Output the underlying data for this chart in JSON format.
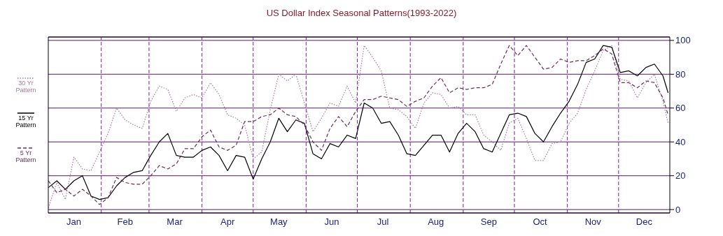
{
  "chart_data": {
    "type": "line",
    "title": "US Dollar Index Seasonal Patterns(1993-2022)",
    "x": [
      "--01-01",
      "--01-06",
      "--01-11",
      "--01-16",
      "--01-21",
      "--01-26",
      "--01-31",
      "--02-05",
      "--02-10",
      "--02-15",
      "--02-20",
      "--02-25",
      "--03-02",
      "--03-07",
      "--03-12",
      "--03-17",
      "--03-22",
      "--03-27",
      "--04-01",
      "--04-06",
      "--04-11",
      "--04-16",
      "--04-21",
      "--04-26",
      "--05-01",
      "--05-06",
      "--05-11",
      "--05-16",
      "--05-21",
      "--05-26",
      "--05-31",
      "--06-05",
      "--06-10",
      "--06-15",
      "--06-20",
      "--06-25",
      "--06-30",
      "--07-05",
      "--07-10",
      "--07-15",
      "--07-20",
      "--07-25",
      "--07-30",
      "--08-04",
      "--08-09",
      "--08-14",
      "--08-19",
      "--08-24",
      "--08-29",
      "--09-03",
      "--09-08",
      "--09-13",
      "--09-18",
      "--09-23",
      "--09-28",
      "--10-03",
      "--10-08",
      "--10-13",
      "--10-18",
      "--10-23",
      "--10-28",
      "--11-02",
      "--11-07",
      "--11-12",
      "--11-17",
      "--11-22",
      "--11-27",
      "--12-02",
      "--12-07",
      "--12-12",
      "--12-17",
      "--12-22",
      "--12-27",
      "--12-30"
    ],
    "xlim": [
      "--01-01",
      "--12-31"
    ],
    "xticks": [
      {
        "value": "--01-16",
        "label": "Jan"
      },
      {
        "value": "--02-15",
        "label": "Feb"
      },
      {
        "value": "--03-16",
        "label": "Mar"
      },
      {
        "value": "--04-16",
        "label": "Apr"
      },
      {
        "value": "--05-16",
        "label": "May"
      },
      {
        "value": "--06-16",
        "label": "Jun"
      },
      {
        "value": "--07-16",
        "label": "Jul"
      },
      {
        "value": "--08-16",
        "label": "Aug"
      },
      {
        "value": "--09-16",
        "label": "Sep"
      },
      {
        "value": "--10-16",
        "label": "Oct"
      },
      {
        "value": "--11-16",
        "label": "Nov"
      },
      {
        "value": "--12-16",
        "label": "Dec"
      }
    ],
    "ylim": [
      -2,
      102
    ],
    "yticks": [
      0,
      20,
      40,
      60,
      80,
      100
    ],
    "series": [
      {
        "name": "30 Yr Pattern",
        "color": "#a77aa5",
        "line_style": "dotted",
        "values": [
          1,
          16,
          6,
          31,
          24,
          23,
          34,
          45,
          60,
          53,
          50,
          48,
          64,
          73,
          71,
          58,
          66,
          68,
          66,
          75,
          68,
          56,
          54,
          50,
          30,
          34,
          59,
          80,
          76,
          80,
          63,
          46,
          54,
          63,
          61,
          73,
          63,
          97,
          90,
          82,
          60,
          59,
          55,
          48,
          63,
          69,
          68,
          60,
          61,
          56,
          56,
          44,
          40,
          35,
          51,
          54,
          42,
          29,
          29,
          39,
          40,
          51,
          57,
          71,
          82,
          94,
          97,
          77,
          76,
          66,
          75,
          80,
          64,
          51
        ]
      },
      {
        "name": "15 Yr Pattern",
        "color": "#000000",
        "line_style": "solid",
        "values": [
          13,
          17,
          12,
          17,
          20,
          8,
          6,
          7,
          14,
          19,
          22,
          23,
          32,
          40,
          45,
          32,
          31,
          31,
          35,
          37,
          32,
          23,
          32,
          31,
          18,
          30,
          40,
          54,
          46,
          53,
          51,
          33,
          30,
          39,
          37,
          44,
          42,
          63,
          60,
          51,
          52,
          44,
          33,
          32,
          38,
          44,
          44,
          34,
          45,
          51,
          46,
          36,
          34,
          45,
          56,
          57,
          55,
          45,
          40,
          49,
          57,
          64,
          74,
          87,
          89,
          97,
          96,
          81,
          82,
          79,
          84,
          86,
          79,
          69
        ]
      },
      {
        "name": "5 Yr Pattern",
        "color": "#6b2d5c",
        "line_style": "dashed",
        "values": [
          17,
          10,
          12,
          8,
          12,
          8,
          3,
          7,
          19,
          16,
          15,
          15,
          20,
          26,
          24,
          27,
          36,
          36,
          43,
          47,
          37,
          35,
          38,
          52,
          52,
          55,
          56,
          60,
          56,
          55,
          50,
          40,
          35,
          48,
          55,
          49,
          58,
          65,
          65,
          67,
          66,
          65,
          61,
          64,
          66,
          73,
          78,
          69,
          72,
          71,
          72,
          72,
          74,
          86,
          97,
          91,
          97,
          90,
          83,
          84,
          89,
          87,
          88,
          88,
          91,
          95,
          92,
          75,
          75,
          72,
          76,
          75,
          66,
          56
        ]
      }
    ],
    "grid": "y",
    "legend": "left",
    "ref_lines": [
      {
        "axis": "x",
        "value": "--02-01",
        "color": "#7b1fa2",
        "line_style": "dashed"
      },
      {
        "axis": "x",
        "value": "--03-01",
        "color": "#7b1fa2",
        "line_style": "dashed"
      },
      {
        "axis": "x",
        "value": "--04-01",
        "color": "#7b1fa2",
        "line_style": "dashed"
      },
      {
        "axis": "x",
        "value": "--05-01",
        "color": "#7b1fa2",
        "line_style": "dashed"
      },
      {
        "axis": "x",
        "value": "--06-01",
        "color": "#7b1fa2",
        "line_style": "dashed"
      },
      {
        "axis": "x",
        "value": "--07-01",
        "color": "#7b1fa2",
        "line_style": "dashed"
      },
      {
        "axis": "x",
        "value": "--08-01",
        "color": "#7b1fa2",
        "line_style": "dashed"
      },
      {
        "axis": "x",
        "value": "--09-01",
        "color": "#7b1fa2",
        "line_style": "dashed"
      },
      {
        "axis": "x",
        "value": "--10-01",
        "color": "#7b1fa2",
        "line_style": "dashed"
      },
      {
        "axis": "x",
        "value": "--11-01",
        "color": "#7b1fa2",
        "line_style": "dashed"
      },
      {
        "axis": "x",
        "value": "--12-01",
        "color": "#7b1fa2",
        "line_style": "dashed"
      }
    ]
  }
}
